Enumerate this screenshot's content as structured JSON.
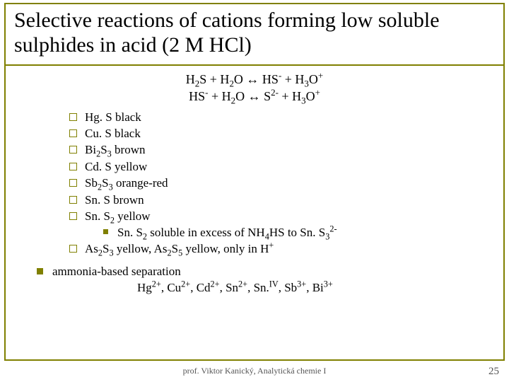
{
  "title": "Selective reactions of cations forming low soluble sulphides in acid (2 M HCl)",
  "equations": {
    "eq1_html": "H<sub>2</sub>S + H<sub>2</sub>O <span class='arrow'>&#8596;</span> HS<sup>-</sup> + H<sub>3</sub>O<sup>+</sup>",
    "eq2_html": "HS<sup>-</sup> + H<sub>2</sub>O <span class='arrow'>&#8596;</span> S<sup>2-</sup> + H<sub>3</sub>O<sup>+</sup>"
  },
  "sulphides": [
    "Hg. S black",
    "Cu. S black",
    "Bi<sub>2</sub>S<sub>3</sub> brown",
    "Cd. S yellow",
    "Sb<sub>2</sub>S<sub>3</sub> orange-red",
    "Sn. S brown",
    "Sn. S<sub>2</sub> yellow"
  ],
  "sub_note_html": "Sn. S<sub>2</sub> soluble in excess of NH<sub>4</sub>HS to Sn. S<sub>3</sub><sup>2-</sup>",
  "last_item_html": "As<sub>2</sub>S<sub>3</sub> yellow, As<sub>2</sub>S<sub>5</sub> yellow, only in H<sup>+</sup>",
  "separation": {
    "label": "ammonia-based separation",
    "ions_html": "Hg<sup>2+</sup>, Cu<sup>2+</sup>, Cd<sup>2+</sup>, Sn<sup>2+</sup>, Sn.<sup>IV</sup>, Sb<sup>3+</sup>, Bi<sup>3+</sup>"
  },
  "footer": {
    "author": "prof. Viktor Kanický, Analytická chemie I",
    "page": "25"
  },
  "colors": {
    "accent": "#808000",
    "text": "#000000",
    "footer_text": "#555555",
    "background": "#ffffff"
  }
}
